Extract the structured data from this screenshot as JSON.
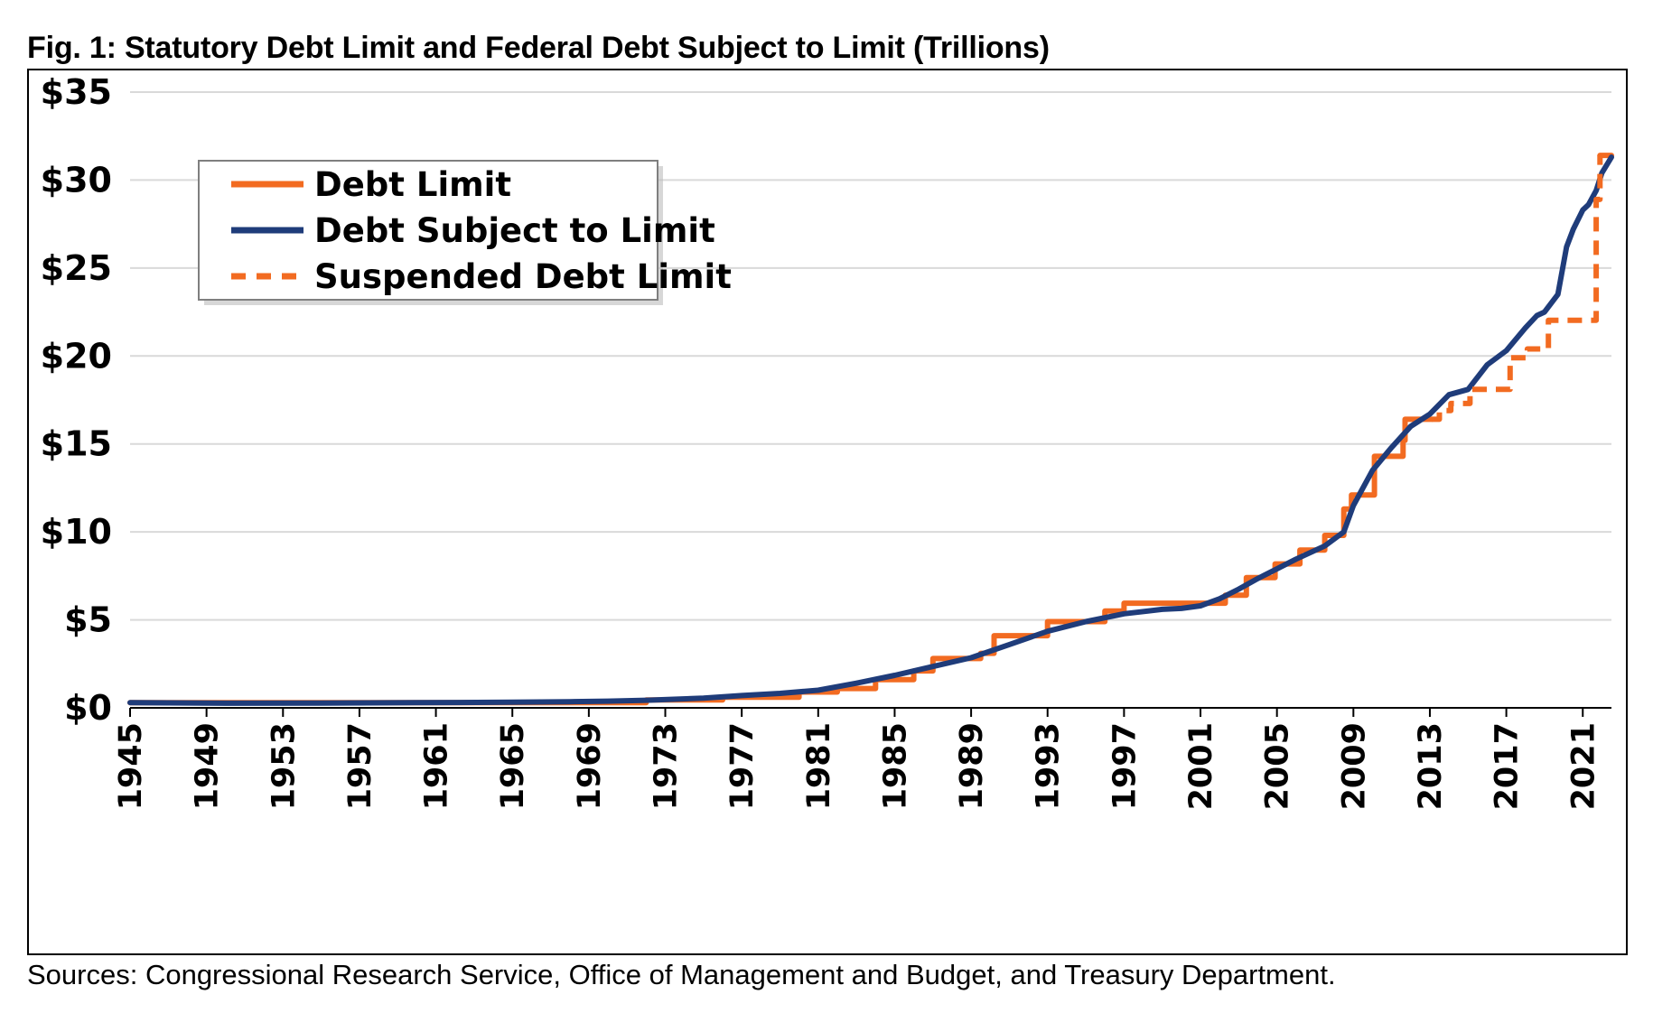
{
  "figure": {
    "title": "Fig. 1: Statutory Debt Limit and Federal Debt Subject to Limit (Trillions)",
    "source": "Sources: Congressional Research Service, Office of Management and Budget, and Treasury Department."
  },
  "chart_data": {
    "type": "line",
    "title": "Fig. 1: Statutory Debt Limit and Federal Debt Subject to Limit (Trillions)",
    "xlabel": "",
    "ylabel": "",
    "xlim": [
      1945,
      2022.5
    ],
    "ylim": [
      0,
      35
    ],
    "grid": true,
    "legend_position": "top-left",
    "y_ticks": [
      {
        "value": 0,
        "label": "$0"
      },
      {
        "value": 5,
        "label": "$5"
      },
      {
        "value": 10,
        "label": "$10"
      },
      {
        "value": 15,
        "label": "$15"
      },
      {
        "value": 20,
        "label": "$20"
      },
      {
        "value": 25,
        "label": "$25"
      },
      {
        "value": 30,
        "label": "$30"
      },
      {
        "value": 35,
        "label": "$35"
      }
    ],
    "x_ticks": [
      {
        "value": 1945,
        "label": "1945"
      },
      {
        "value": 1949,
        "label": "1949"
      },
      {
        "value": 1953,
        "label": "1953"
      },
      {
        "value": 1957,
        "label": "1957"
      },
      {
        "value": 1961,
        "label": "1961"
      },
      {
        "value": 1965,
        "label": "1965"
      },
      {
        "value": 1969,
        "label": "1969"
      },
      {
        "value": 1973,
        "label": "1973"
      },
      {
        "value": 1977,
        "label": "1977"
      },
      {
        "value": 1981,
        "label": "1981"
      },
      {
        "value": 1985,
        "label": "1985"
      },
      {
        "value": 1989,
        "label": "1989"
      },
      {
        "value": 1993,
        "label": "1993"
      },
      {
        "value": 1997,
        "label": "1997"
      },
      {
        "value": 2001,
        "label": "2001"
      },
      {
        "value": 2005,
        "label": "2005"
      },
      {
        "value": 2009,
        "label": "2009"
      },
      {
        "value": 2013,
        "label": "2013"
      },
      {
        "value": 2017,
        "label": "2017"
      },
      {
        "value": 2021,
        "label": "2021"
      }
    ],
    "series": [
      {
        "name": "Debt Limit",
        "color": "#F26B21",
        "style": "solid",
        "step": true,
        "segments": [
          [
            [
              1945,
              0.3
            ],
            [
              1972,
              0.45
            ],
            [
              1976,
              0.6
            ],
            [
              1980,
              0.9
            ],
            [
              1982,
              1.1
            ],
            [
              1984,
              1.6
            ],
            [
              1986,
              2.1
            ],
            [
              1987,
              2.8
            ],
            [
              1989.5,
              3.1
            ],
            [
              1990.2,
              4.1
            ],
            [
              1993,
              4.9
            ],
            [
              1996,
              5.5
            ],
            [
              1997,
              5.95
            ],
            [
              2002.3,
              6.4
            ],
            [
              2003.4,
              7.4
            ],
            [
              2004.9,
              8.18
            ],
            [
              2006.2,
              8.97
            ],
            [
              2007.5,
              9.8
            ],
            [
              2008.5,
              11.3
            ],
            [
              2008.9,
              12.1
            ],
            [
              2010.1,
              14.3
            ],
            [
              2011.6,
              15.2
            ],
            [
              2011.7,
              16.4
            ],
            [
              2013.1,
              16.4
            ]
          ],
          [
            [
              2021.9,
              31.4
            ],
            [
              2022.5,
              31.4
            ]
          ]
        ]
      },
      {
        "name": "Debt Subject to Limit",
        "color": "#1F3C7A",
        "style": "solid",
        "step": false,
        "points": [
          [
            1945,
            0.3
          ],
          [
            1950,
            0.26
          ],
          [
            1955,
            0.27
          ],
          [
            1960,
            0.29
          ],
          [
            1965,
            0.32
          ],
          [
            1968,
            0.35
          ],
          [
            1970,
            0.38
          ],
          [
            1972,
            0.43
          ],
          [
            1975,
            0.55
          ],
          [
            1977,
            0.7
          ],
          [
            1979,
            0.82
          ],
          [
            1981,
            1.0
          ],
          [
            1983,
            1.4
          ],
          [
            1985,
            1.85
          ],
          [
            1987,
            2.35
          ],
          [
            1989,
            2.85
          ],
          [
            1991,
            3.6
          ],
          [
            1993,
            4.35
          ],
          [
            1995,
            4.9
          ],
          [
            1997,
            5.35
          ],
          [
            1999,
            5.6
          ],
          [
            2000,
            5.65
          ],
          [
            2001,
            5.8
          ],
          [
            2002,
            6.2
          ],
          [
            2003,
            6.75
          ],
          [
            2004,
            7.35
          ],
          [
            2005,
            7.9
          ],
          [
            2006,
            8.45
          ],
          [
            2007.5,
            9.2
          ],
          [
            2008.5,
            10.0
          ],
          [
            2009,
            11.5
          ],
          [
            2010,
            13.5
          ],
          [
            2011,
            14.8
          ],
          [
            2012,
            16.0
          ],
          [
            2013,
            16.7
          ],
          [
            2014,
            17.8
          ],
          [
            2015,
            18.1
          ],
          [
            2016,
            19.5
          ],
          [
            2017,
            20.3
          ],
          [
            2018,
            21.6
          ],
          [
            2018.6,
            22.3
          ],
          [
            2019,
            22.5
          ],
          [
            2019.7,
            23.5
          ],
          [
            2020.15,
            26.2
          ],
          [
            2020.5,
            27.2
          ],
          [
            2021,
            28.3
          ],
          [
            2021.3,
            28.6
          ],
          [
            2021.7,
            29.4
          ],
          [
            2022,
            30.4
          ],
          [
            2022.5,
            31.3
          ]
        ]
      },
      {
        "name": "Suspended Debt Limit",
        "color": "#F26B21",
        "style": "dashed",
        "step": true,
        "points": [
          [
            2013.1,
            16.4
          ],
          [
            2013.5,
            16.9
          ],
          [
            2014.1,
            17.3
          ],
          [
            2015.1,
            18.1
          ],
          [
            2017.2,
            19.9
          ],
          [
            2018.1,
            20.4
          ],
          [
            2019.2,
            22.03
          ],
          [
            2021.2,
            22.03
          ],
          [
            2021.7,
            28.9
          ],
          [
            2021.9,
            31.4
          ]
        ]
      }
    ]
  }
}
